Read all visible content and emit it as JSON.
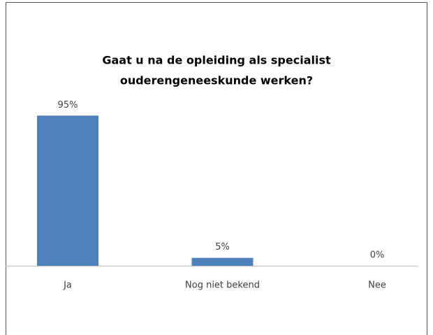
{
  "chart_data": {
    "type": "bar",
    "title": [
      "Gaat u na de opleiding als specialist",
      "ouderengeneeskunde werken?"
    ],
    "categories": [
      "Ja",
      "Nog niet bekend",
      "Nee"
    ],
    "values": [
      95,
      5,
      0
    ],
    "value_labels": [
      "95%",
      "5%",
      "0%"
    ],
    "color": "#4f81bd",
    "ylim": [
      0,
      100
    ]
  }
}
